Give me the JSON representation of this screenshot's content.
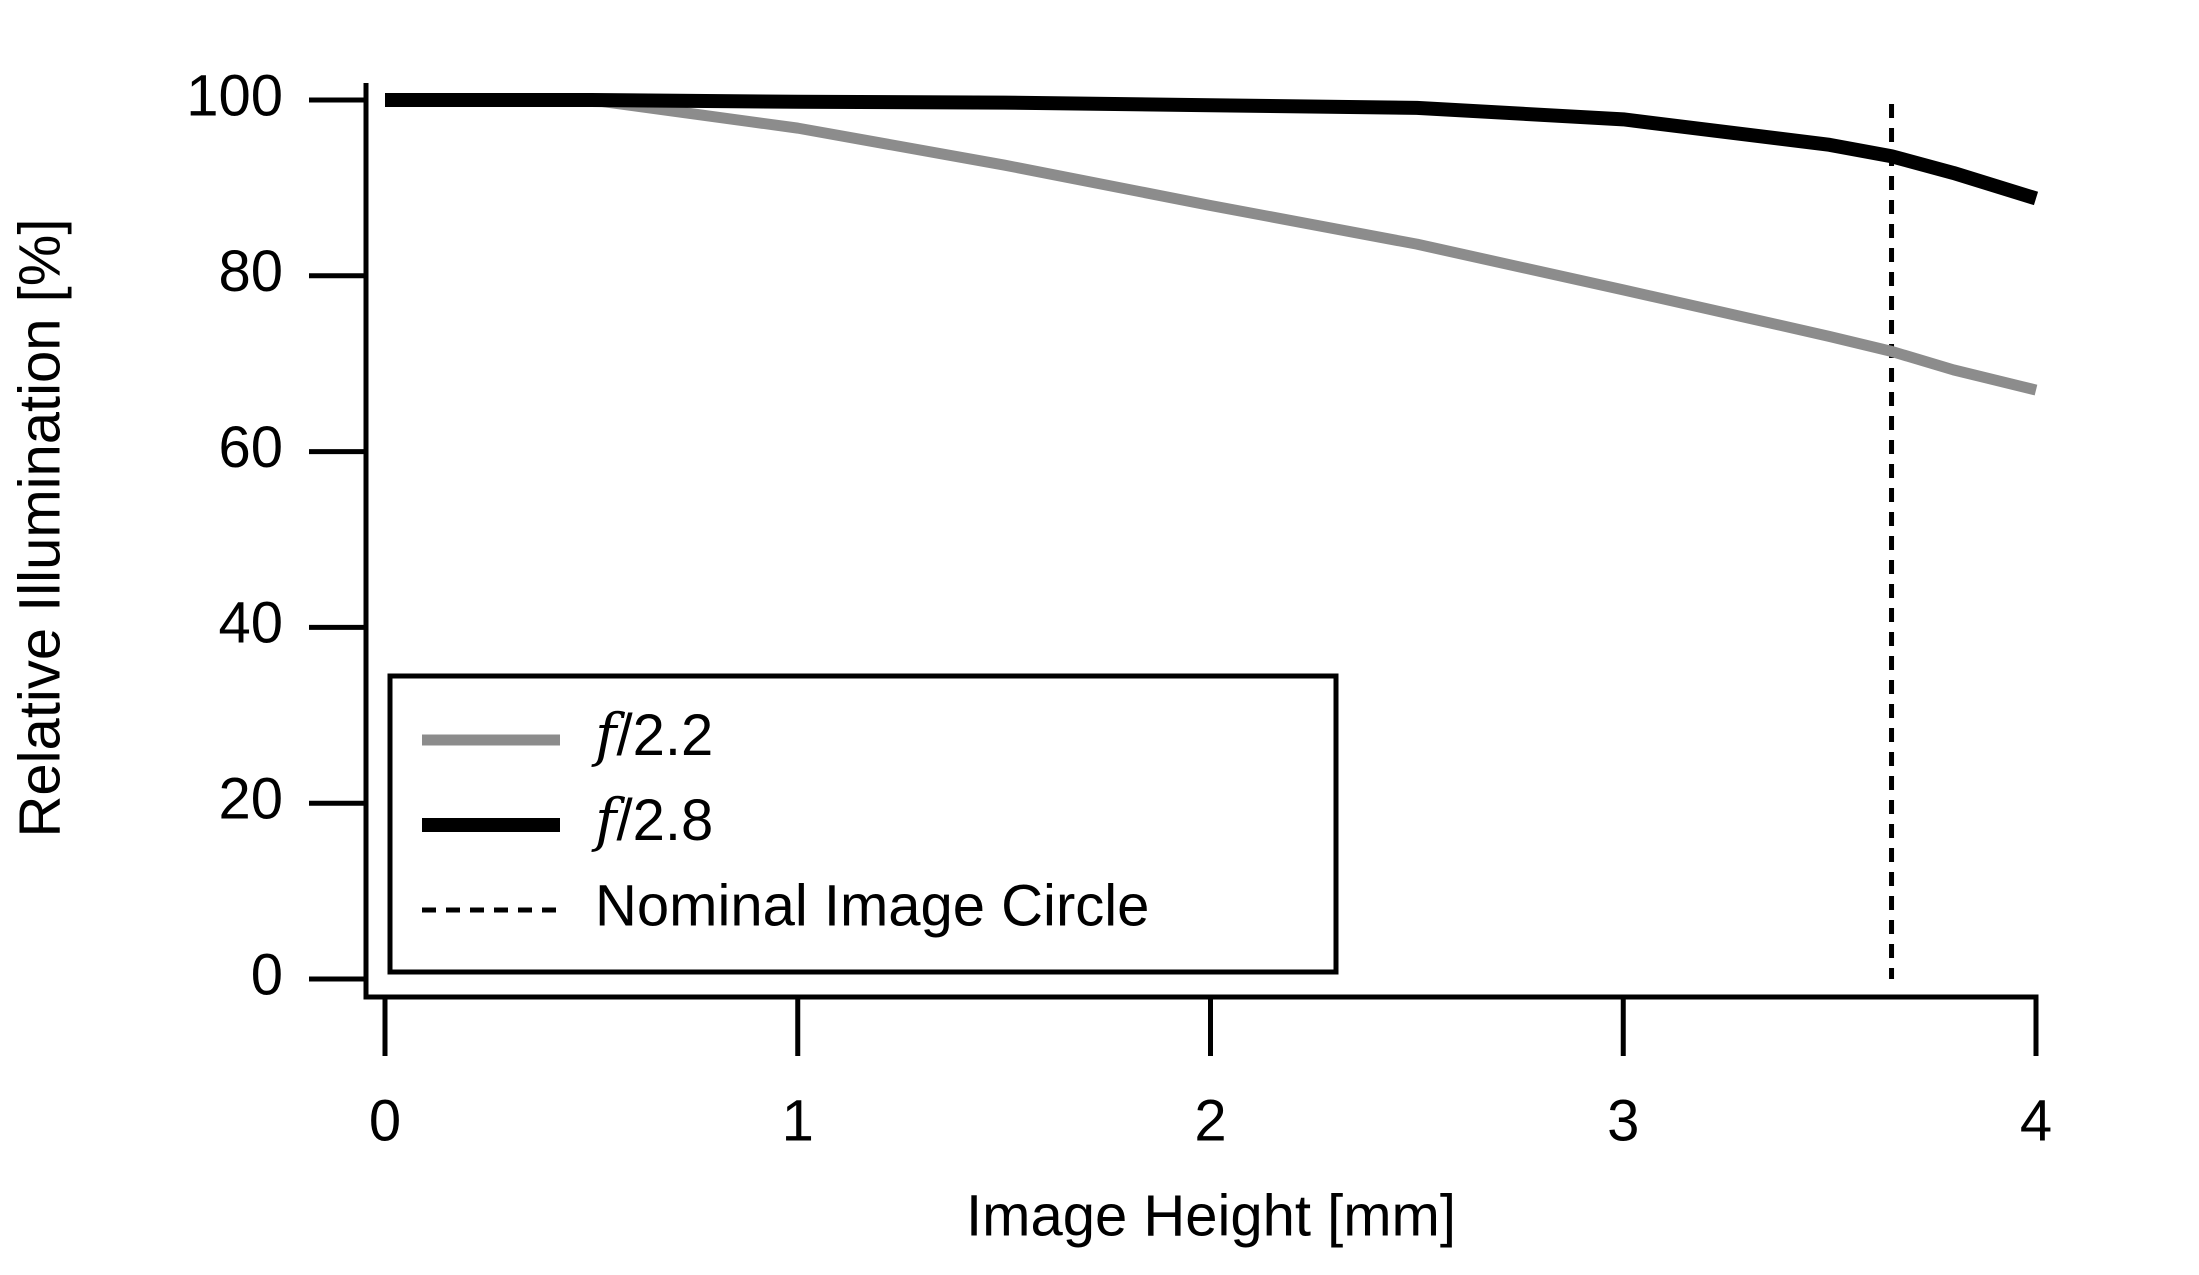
{
  "chart_data": {
    "type": "line",
    "x_label": "Image Height [mm]",
    "y_label": "Relative Illumination [%]",
    "x": [
      0,
      0.5,
      1,
      1.5,
      2,
      2.5,
      3,
      3.5,
      3.65,
      3.8,
      4
    ],
    "series": [
      {
        "name": "f/2.2",
        "color": "#8c8c8c",
        "values": [
          100,
          100,
          96.8,
          92.6,
          88,
          83.6,
          78.4,
          73.1,
          71.4,
          69.3,
          67
        ]
      },
      {
        "name": "f/2.8",
        "color": "#000000",
        "values": [
          100,
          100,
          99.8,
          99.7,
          99.4,
          99.1,
          97.8,
          94.9,
          93.6,
          91.7,
          88.8
        ]
      }
    ],
    "vlines": [
      {
        "name": "Nominal Image Circle",
        "x": 3.65,
        "color": "#000000"
      }
    ],
    "xlim": [
      0,
      4
    ],
    "xticks": [
      0,
      1,
      2,
      3,
      4
    ],
    "ylim": [
      0,
      100
    ],
    "yticks": [
      0,
      20,
      40,
      60,
      80,
      100
    ],
    "grid": false,
    "legend": "lower left"
  }
}
